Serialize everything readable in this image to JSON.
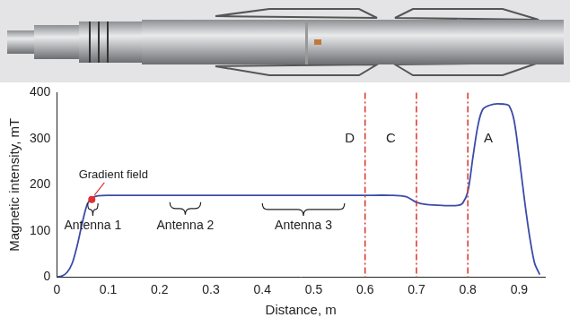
{
  "chart_data": {
    "type": "line",
    "x_label": "Distance, m",
    "y_label": "Magnetic intensity, mT",
    "x": [
      0,
      0.01,
      0.02,
      0.03,
      0.04,
      0.05,
      0.06,
      0.07,
      0.08,
      0.1,
      0.2,
      0.3,
      0.4,
      0.5,
      0.6,
      0.65,
      0.68,
      0.7,
      0.72,
      0.75,
      0.78,
      0.79,
      0.8,
      0.81,
      0.82,
      0.83,
      0.85,
      0.87,
      0.88,
      0.89,
      0.9,
      0.91,
      0.92,
      0.93,
      0.94
    ],
    "values": [
      0,
      2,
      10,
      30,
      70,
      120,
      160,
      172,
      176,
      177,
      177,
      177,
      177,
      177,
      177,
      177,
      174,
      162,
      157,
      155,
      155,
      160,
      185,
      260,
      330,
      365,
      375,
      375,
      372,
      340,
      260,
      170,
      90,
      30,
      5
    ],
    "color": "#3b4ba8",
    "xlim": [
      0,
      0.95
    ],
    "xticks": [
      0,
      0.1,
      0.2,
      0.3,
      0.4,
      0.5,
      0.6,
      0.7,
      0.8,
      0.9
    ],
    "ylim": [
      0,
      400
    ],
    "yticks": [
      0,
      100,
      200,
      300,
      400
    ],
    "grid": false,
    "boundaries": {
      "x": [
        0.6,
        0.7,
        0.8
      ],
      "color": "#d9342b",
      "line_style": "dashed"
    },
    "region_labels": [
      {
        "text": "D",
        "x": 0.57,
        "y": 300
      },
      {
        "text": "C",
        "x": 0.65,
        "y": 300
      },
      {
        "text": "A",
        "x": 0.84,
        "y": 300
      }
    ],
    "antennas": [
      {
        "text": "Antenna 1",
        "from": 0.06,
        "to": 0.08,
        "y": 160,
        "label_y": 110
      },
      {
        "text": "Antenna 2",
        "from": 0.22,
        "to": 0.28,
        "y": 162,
        "label_y": 110
      },
      {
        "text": "Antenna 3",
        "from": 0.4,
        "to": 0.56,
        "y": 160,
        "label_y": 110
      }
    ],
    "callout": {
      "text": "Gradient field",
      "x": 0.11,
      "y": 222,
      "target_x": 0.068,
      "target_y": 168,
      "color": "#e03030"
    }
  }
}
